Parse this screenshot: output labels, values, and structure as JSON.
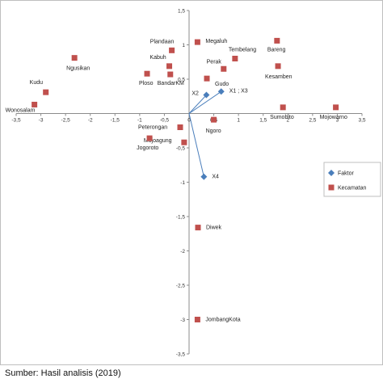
{
  "chart_data": {
    "type": "scatter",
    "title": "",
    "xlabel": "",
    "ylabel": "",
    "xlim": [
      -3.5,
      3.5
    ],
    "ylim": [
      -3.5,
      1.5
    ],
    "x_ticks": [
      "-3,5",
      "-3",
      "-2,5",
      "-2",
      "-1,5",
      "-1",
      "-0,5",
      "0",
      "0,5",
      "1",
      "1,5",
      "2",
      "2,5",
      "3",
      "3,5"
    ],
    "x_tick_values": [
      -3.5,
      -3,
      -2.5,
      -2,
      -1.5,
      -1,
      -0.5,
      0,
      0.5,
      1,
      1.5,
      2,
      2.5,
      3,
      3.5
    ],
    "y_ticks": [
      "1,5",
      "1",
      "0,5",
      "0",
      "-0,5",
      "-1",
      "-1,5",
      "-2",
      "-2,5",
      "-3",
      "-3,5"
    ],
    "y_tick_values": [
      1.5,
      1,
      0.5,
      0,
      -0.5,
      -1,
      -1.5,
      -2,
      -2.5,
      -3,
      -3.5
    ],
    "legend_position": "right",
    "series": [
      {
        "name": "Faktor",
        "color": "#4a7ebb",
        "marker": "diamond",
        "points": [
          {
            "label": "X2",
            "x": 0.35,
            "y": 0.27
          },
          {
            "label": "X1 ; X3",
            "x": 0.65,
            "y": 0.32
          },
          {
            "label": "X4",
            "x": 0.3,
            "y": -0.92
          }
        ]
      },
      {
        "name": "Kecamatan",
        "color": "#c0504d",
        "marker": "square",
        "points": [
          {
            "label": "Plandaan",
            "x": -0.35,
            "y": 0.92
          },
          {
            "label": "Megaluh",
            "x": 0.17,
            "y": 1.04
          },
          {
            "label": "Tembelang",
            "x": 0.93,
            "y": 0.8
          },
          {
            "label": "Bareng",
            "x": 1.78,
            "y": 1.06
          },
          {
            "label": "Kabuh",
            "x": -0.4,
            "y": 0.69
          },
          {
            "label": "Ngusikan",
            "x": -2.32,
            "y": 0.81
          },
          {
            "label": "Ploso",
            "x": -0.85,
            "y": 0.58
          },
          {
            "label": "BandarKM",
            "x": -0.38,
            "y": 0.57
          },
          {
            "label": "Perak",
            "x": 0.7,
            "y": 0.65
          },
          {
            "label": "Kesamben",
            "x": 1.8,
            "y": 0.69
          },
          {
            "label": "Gudo",
            "x": 0.36,
            "y": 0.51
          },
          {
            "label": "Kudu",
            "x": -2.9,
            "y": 0.31
          },
          {
            "label": "Wonosalam",
            "x": -3.13,
            "y": 0.13
          },
          {
            "label": "Sumobito",
            "x": 1.9,
            "y": 0.09
          },
          {
            "label": "Mojowarno",
            "x": 2.97,
            "y": 0.09
          },
          {
            "label": "Ngoro",
            "x": 0.5,
            "y": -0.09
          },
          {
            "label": "Peterongan",
            "x": -0.18,
            "y": -0.2
          },
          {
            "label": "Mojoagung",
            "x": -0.1,
            "y": -0.42
          },
          {
            "label": "Jogoroto",
            "x": -0.8,
            "y": -0.36
          },
          {
            "label": "Diwek",
            "x": 0.18,
            "y": -1.66
          },
          {
            "label": "JombangKota",
            "x": 0.17,
            "y": -3.0
          }
        ]
      }
    ]
  },
  "source_note": "Sumber: Hasil analisis (2019)"
}
